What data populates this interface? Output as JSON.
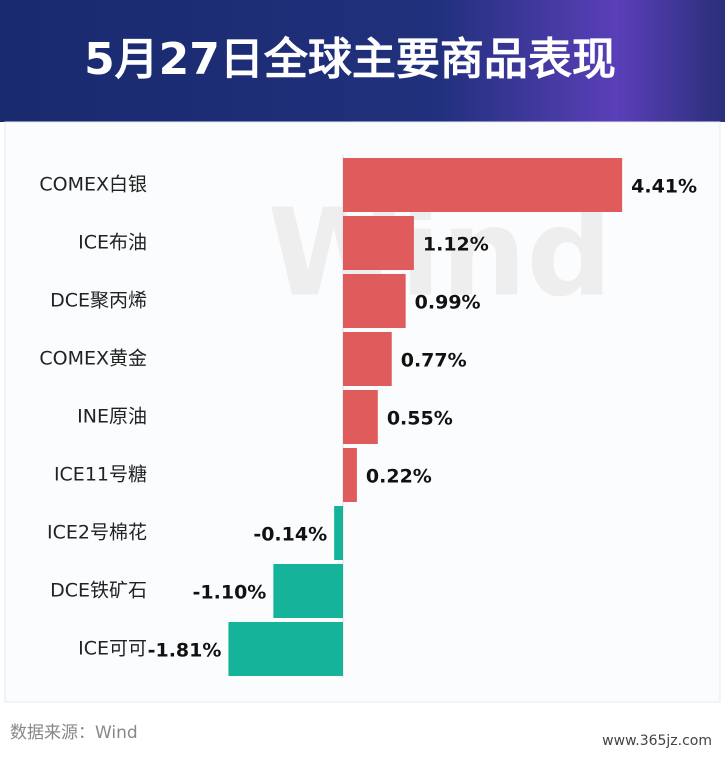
{
  "chart_data": {
    "type": "barh",
    "title": "5月27日全球主要商品表现",
    "categories": [
      "COMEX白银",
      "ICE布油",
      "DCE聚丙烯",
      "COMEX黄金",
      "INE原油",
      "ICE11号糖",
      "ICE2号棉花",
      "DCE铁矿石",
      "ICE可可"
    ],
    "values": [
      4.41,
      1.12,
      0.99,
      0.77,
      0.55,
      0.22,
      -0.14,
      -1.1,
      -1.81
    ],
    "value_labels": [
      "4.41%",
      "1.12%",
      "0.99%",
      "0.77%",
      "0.55%",
      "0.22%",
      "-0.14%",
      "-1.10%",
      "-1.81%"
    ],
    "positive_color": "#e05c5c",
    "negative_color": "#14b39a",
    "watermark": "Wind",
    "source": "数据来源：Wind",
    "site_mark": "www.365jz.com"
  }
}
